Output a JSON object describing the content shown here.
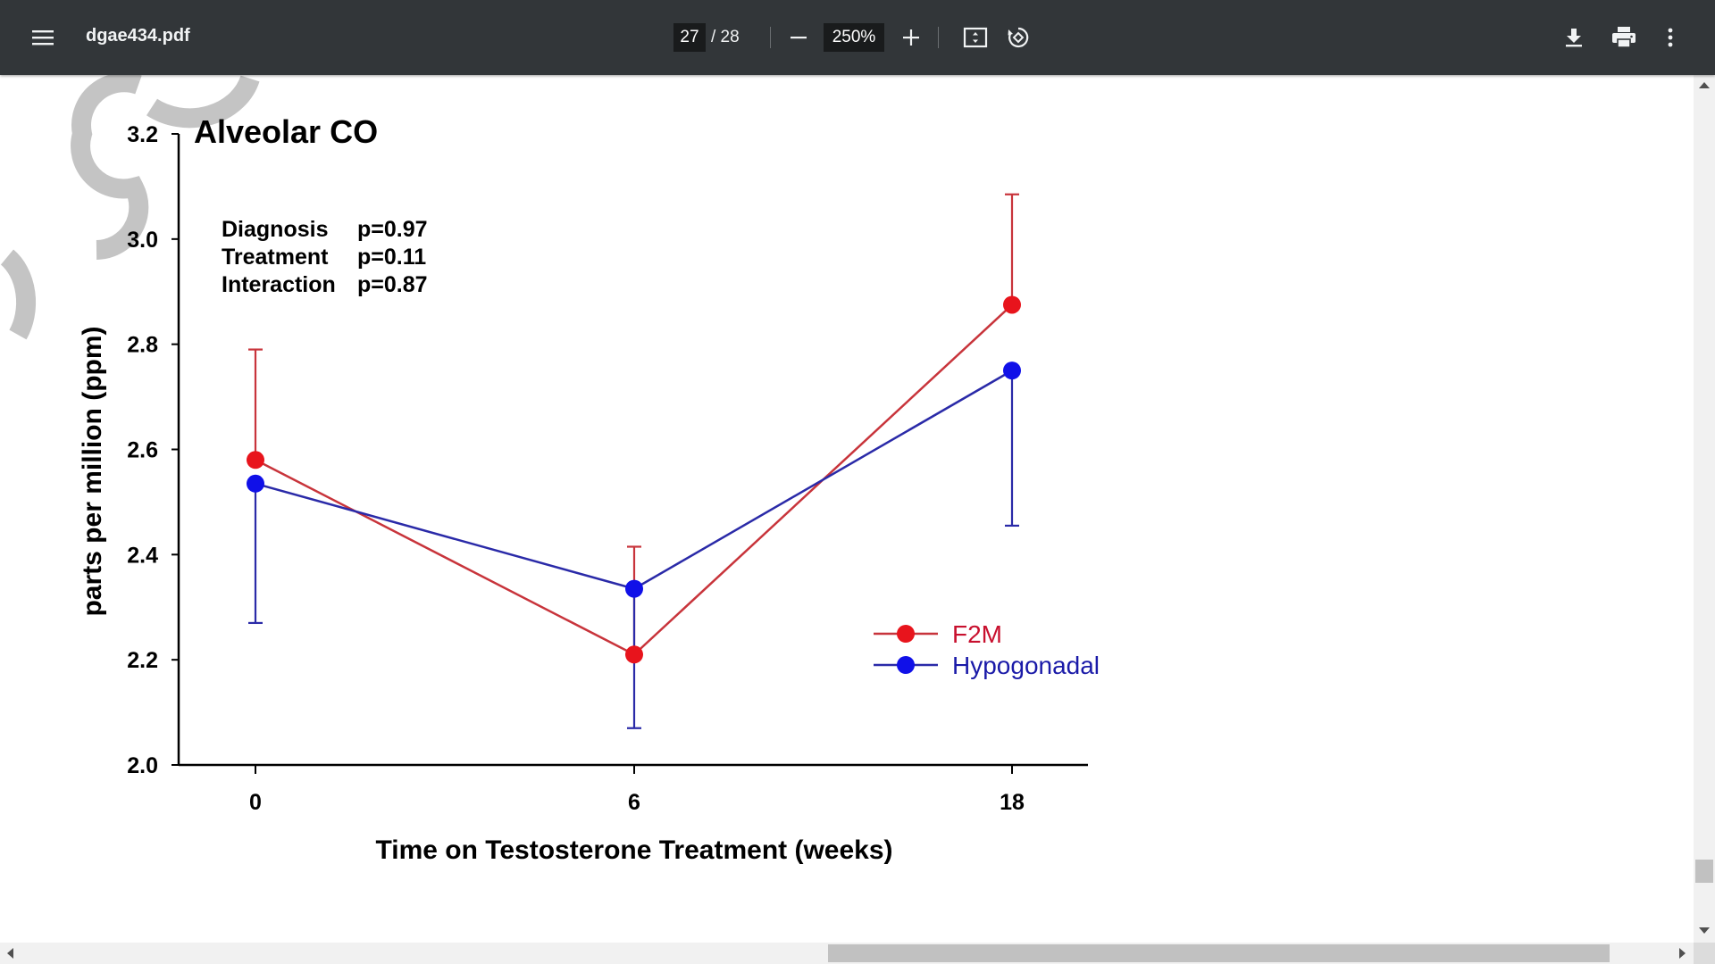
{
  "viewer": {
    "file_name": "dgae434.pdf",
    "current_page": "27",
    "total_pages": "/ 28",
    "zoom": "250%",
    "icons": [
      "menu-icon",
      "minus-icon",
      "plus-icon",
      "fit-page-icon",
      "rotate-icon",
      "download-icon",
      "print-icon",
      "more-vert-icon"
    ],
    "toolbar_color": "#323639"
  },
  "chart_data": {
    "type": "line",
    "title": "Alveolar CO",
    "xlabel": "Time on Testosterone Treatment (weeks)",
    "ylabel": "parts per million (ppm)",
    "categories": [
      "0",
      "6",
      "18"
    ],
    "ylim": [
      2.0,
      3.2
    ],
    "yticks": [
      "2.0",
      "2.2",
      "2.4",
      "2.6",
      "2.8",
      "3.0",
      "3.2"
    ],
    "grid": false,
    "legend_position": "lower-right",
    "stats": [
      {
        "label": "Diagnosis",
        "value": "p=0.97"
      },
      {
        "label": "Treatment",
        "value": "p=0.11"
      },
      {
        "label": "Interaction",
        "value": "p=0.87"
      }
    ],
    "series": [
      {
        "name": "F2M",
        "color": "#e8141c",
        "line_color": "#c8343b",
        "values": [
          2.58,
          2.21,
          2.875
        ],
        "error_bars": [
          2.79,
          2.415,
          3.085
        ],
        "error_direction": "up"
      },
      {
        "name": "Hypogonadal",
        "color": "#1010e8",
        "line_color": "#2a2aa8",
        "values": [
          2.535,
          2.335,
          2.75
        ],
        "error_bars": [
          2.27,
          2.07,
          2.455
        ],
        "error_direction": "down"
      }
    ]
  }
}
